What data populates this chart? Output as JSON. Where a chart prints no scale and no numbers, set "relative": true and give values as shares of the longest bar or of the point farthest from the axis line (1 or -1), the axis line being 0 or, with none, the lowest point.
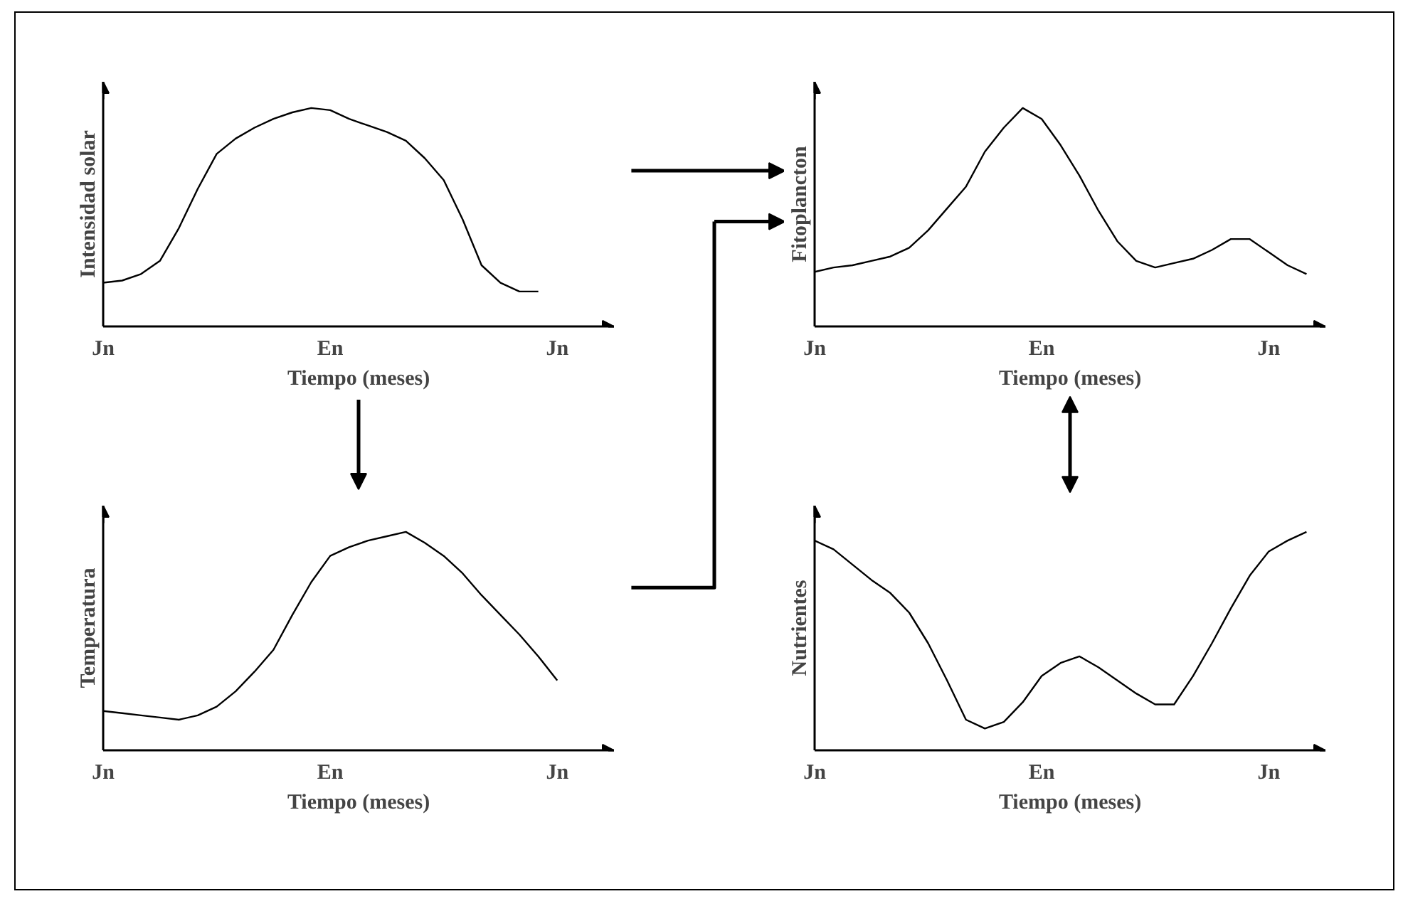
{
  "chart_data": [
    {
      "type": "line",
      "ylabel": "Intensidad solar",
      "xlabel": "Tiempo (meses)",
      "relative": true,
      "color": "#000000",
      "categories": [
        "Jn",
        null,
        null,
        null,
        null,
        null,
        null,
        null,
        null,
        null,
        null,
        null,
        "En",
        null,
        null,
        null,
        null,
        null,
        null,
        null,
        null,
        null,
        null,
        null,
        "Jn",
        null,
        null
      ],
      "values": [
        0.2,
        0.21,
        0.24,
        0.3,
        0.45,
        0.63,
        0.79,
        0.86,
        0.91,
        0.95,
        0.98,
        1.0,
        0.99,
        0.95,
        0.92,
        0.89,
        0.85,
        0.77,
        0.67,
        0.49,
        0.28,
        0.2,
        0.16,
        0.16,
        null,
        null,
        null
      ]
    },
    {
      "type": "line",
      "ylabel": "Temperatura",
      "xlabel": "Tiempo (meses)",
      "relative": true,
      "color": "#000000",
      "categories": [
        "Jn",
        null,
        null,
        null,
        null,
        null,
        null,
        null,
        null,
        null,
        null,
        null,
        "En",
        null,
        null,
        null,
        null,
        null,
        null,
        null,
        null,
        null,
        null,
        null,
        "Jn",
        null,
        null
      ],
      "values": [
        0.18,
        0.17,
        0.16,
        0.15,
        0.14,
        0.16,
        0.2,
        0.27,
        0.36,
        0.46,
        0.62,
        0.77,
        0.89,
        0.93,
        0.96,
        0.98,
        1.0,
        0.95,
        0.89,
        0.81,
        0.71,
        0.62,
        0.53,
        0.43,
        0.32,
        null,
        null
      ]
    },
    {
      "type": "line",
      "ylabel": "Fitoplancton",
      "xlabel": "Tiempo (meses)",
      "relative": true,
      "color": "#000000",
      "categories": [
        "Jn",
        null,
        null,
        null,
        null,
        null,
        null,
        null,
        null,
        null,
        null,
        null,
        "En",
        null,
        null,
        null,
        null,
        null,
        null,
        null,
        null,
        null,
        null,
        null,
        "Jn",
        null,
        null
      ],
      "values": [
        0.25,
        0.27,
        0.28,
        0.3,
        0.32,
        0.36,
        0.44,
        0.54,
        0.64,
        0.8,
        0.91,
        1.0,
        0.95,
        0.83,
        0.69,
        0.53,
        0.39,
        0.3,
        0.27,
        0.29,
        0.31,
        0.35,
        0.4,
        0.4,
        0.34,
        0.28,
        0.24
      ]
    },
    {
      "type": "line",
      "ylabel": "Nutrientes",
      "xlabel": "Tiempo (meses)",
      "relative": true,
      "color": "#000000",
      "categories": [
        "Jn",
        null,
        null,
        null,
        null,
        null,
        null,
        null,
        null,
        null,
        null,
        null,
        "En",
        null,
        null,
        null,
        null,
        null,
        null,
        null,
        null,
        null,
        null,
        null,
        "Jn",
        null,
        null
      ],
      "values": [
        0.96,
        0.92,
        0.85,
        0.78,
        0.72,
        0.63,
        0.49,
        0.32,
        0.14,
        0.1,
        0.13,
        0.22,
        0.34,
        0.4,
        0.43,
        0.38,
        0.32,
        0.26,
        0.21,
        0.21,
        0.34,
        0.49,
        0.65,
        0.8,
        0.91,
        0.96,
        1.0
      ]
    }
  ]
}
